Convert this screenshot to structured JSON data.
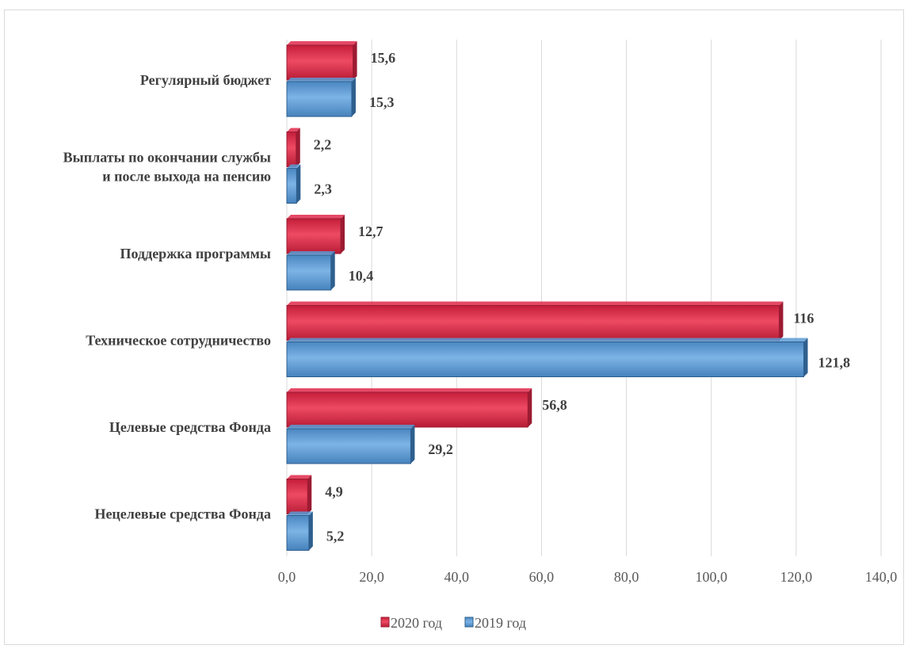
{
  "chart_data": {
    "type": "bar",
    "orientation": "horizontal",
    "categories": [
      [
        "Регулярный бюджет"
      ],
      [
        "Выплаты по окончании службы",
        "и после выхода на пенсию"
      ],
      [
        "Поддержка программы"
      ],
      [
        "Техническое сотрудничество"
      ],
      [
        "Целевые средства Фонда"
      ],
      [
        "Нецелевые средства Фонда"
      ]
    ],
    "series": [
      {
        "name": "2020 год",
        "color": "#e0294a",
        "dark": "#9c1b32",
        "values": [
          15.6,
          2.2,
          12.7,
          116,
          56.8,
          4.9
        ],
        "labels": [
          "15,6",
          "2,2",
          "12,7",
          "116",
          "56,8",
          "4,9"
        ]
      },
      {
        "name": "2019 год",
        "color": "#5b9bd5",
        "dark": "#2e5f8e",
        "values": [
          15.3,
          2.3,
          10.4,
          121.8,
          29.2,
          5.2
        ],
        "labels": [
          "15,3",
          "2,3",
          "10,4",
          "121,8",
          "29,2",
          "5,2"
        ]
      }
    ],
    "xlim": [
      0,
      140
    ],
    "xticks": [
      0,
      20,
      40,
      60,
      80,
      100,
      120,
      140
    ],
    "xtick_labels": [
      "0,0",
      "20,0",
      "40,0",
      "60,0",
      "80,0",
      "100,0",
      "120,0",
      "140,0"
    ],
    "grid": true,
    "legend_position": "bottom"
  }
}
